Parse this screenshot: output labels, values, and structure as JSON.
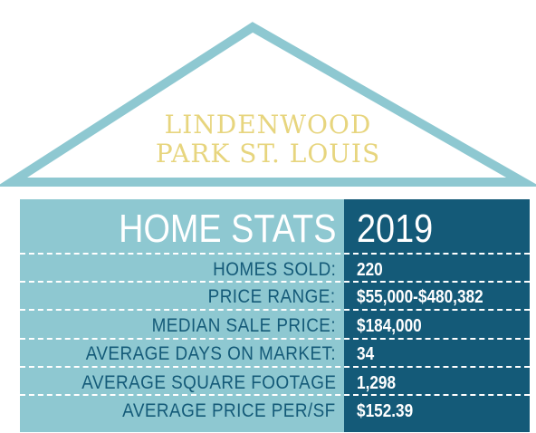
{
  "title": {
    "line1": "LINDENWOOD",
    "line2": "PARK ST. LOUIS"
  },
  "header": {
    "label": "HOME STATS",
    "year": "2019"
  },
  "stats": [
    {
      "label": "HOMES SOLD:",
      "value": "220"
    },
    {
      "label": "PRICE RANGE:",
      "value": "$55,000-$480,382"
    },
    {
      "label": "MEDIAN SALE PRICE:",
      "value": "$184,000"
    },
    {
      "label": "AVERAGE DAYS ON MARKET:",
      "value": "34"
    },
    {
      "label": "AVERAGE SQUARE FOOTAGE",
      "value": "1,298"
    },
    {
      "label": "AVERAGE PRICE PER/SF",
      "value": "$152.39"
    }
  ],
  "colors": {
    "roof_outline": "#8ec8d1",
    "title_text": "#e7d57e",
    "left_panel": "#8ec8d1",
    "right_panel": "#145a78",
    "label_text": "#145a78",
    "value_text": "#ffffff"
  }
}
